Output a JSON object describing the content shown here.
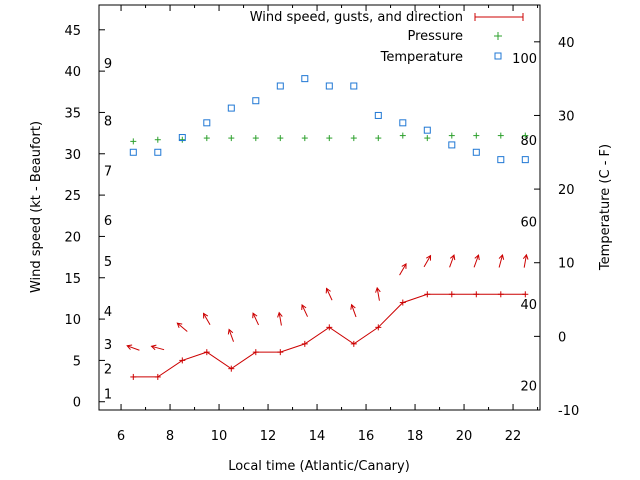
{
  "chart_data": {
    "type": "line",
    "xlabel": "Local time (Atlantic/Canary)",
    "ylabel_left": "Wind speed (kt - Beaufort)",
    "ylabel_right": "Temperature (C - F)",
    "xlim": [
      5.1,
      23.1
    ],
    "ylim_left": [
      -1,
      48
    ],
    "ylim_right": [
      -10,
      45
    ],
    "x_ticks": [
      6,
      8,
      10,
      12,
      14,
      16,
      18,
      20,
      22
    ],
    "y_left_ticks": [
      0,
      5,
      10,
      15,
      20,
      25,
      30,
      35,
      40,
      45
    ],
    "y_right_ticks": [
      -10,
      0,
      10,
      20,
      30,
      40
    ],
    "beaufort_labels": [
      {
        "label": "1",
        "kt": 1
      },
      {
        "label": "2",
        "kt": 4
      },
      {
        "label": "3",
        "kt": 7
      },
      {
        "label": "4",
        "kt": 11
      },
      {
        "label": "5",
        "kt": 17
      },
      {
        "label": "6",
        "kt": 22
      },
      {
        "label": "7",
        "kt": 28
      },
      {
        "label": "8",
        "kt": 34
      },
      {
        "label": "9",
        "kt": 41
      }
    ],
    "fahrenheit_labels": [
      {
        "label": "20",
        "c": -6.7
      },
      {
        "label": "40",
        "c": 4.4
      },
      {
        "label": "60",
        "c": 15.6
      },
      {
        "label": "80",
        "c": 26.7
      },
      {
        "label": "100",
        "c": 37.8
      }
    ],
    "legend": {
      "position": "top-right",
      "wind": "Wind speed, gusts, and direction",
      "pressure": "Pressure",
      "temperature": "Temperature"
    },
    "colors": {
      "wind": "#cc0000",
      "pressure": "#2ca02c",
      "temperature": "#1f77d4"
    },
    "series": [
      {
        "name": "Wind speed, gusts, and direction",
        "x": [
          6.5,
          7.5,
          8.5,
          9.5,
          10.5,
          11.5,
          12.5,
          13.5,
          14.5,
          15.5,
          16.5,
          17.5,
          18.5,
          19.5,
          20.5,
          21.5,
          22.5
        ],
        "values": [
          3,
          3,
          5,
          6,
          4,
          6,
          6,
          7,
          9,
          7,
          9,
          12,
          13,
          13,
          13,
          13,
          13
        ]
      },
      {
        "name": "Pressure",
        "x": [
          6.5,
          7.5,
          8.5,
          9.5,
          10.5,
          11.5,
          12.5,
          13.5,
          14.5,
          15.5,
          16.5,
          17.5,
          18.5,
          19.5,
          20.5,
          21.5,
          22.5
        ],
        "values": [
          31.5,
          31.7,
          31.7,
          31.9,
          31.9,
          31.9,
          31.9,
          31.9,
          31.9,
          31.9,
          31.9,
          32.2,
          31.9,
          32.2,
          32.2,
          32.2,
          32.2
        ]
      },
      {
        "name": "Temperature",
        "x": [
          6.5,
          7.5,
          8.5,
          9.5,
          10.5,
          11.5,
          12.5,
          13.5,
          14.5,
          15.5,
          16.5,
          17.5,
          18.5,
          19.5,
          20.5,
          21.5,
          22.5
        ],
        "values": [
          25,
          25,
          27,
          29,
          31,
          32,
          34,
          35,
          34,
          34,
          30,
          29,
          28,
          26,
          25,
          24,
          24
        ]
      }
    ],
    "wind_direction_arrows": {
      "x": [
        6.5,
        7.5,
        8.5,
        9.5,
        10.5,
        11.5,
        12.5,
        13.5,
        14.5,
        15.5,
        16.5,
        17.5,
        18.5,
        19.5,
        20.5,
        21.5,
        22.5
      ],
      "kt": [
        6.5,
        6.5,
        9,
        10,
        8,
        10,
        10,
        11,
        13,
        11,
        13,
        16,
        17,
        17,
        17,
        17,
        17
      ],
      "bearing_deg": [
        160,
        165,
        140,
        120,
        110,
        115,
        100,
        115,
        115,
        110,
        100,
        60,
        60,
        70,
        70,
        75,
        80
      ]
    }
  }
}
